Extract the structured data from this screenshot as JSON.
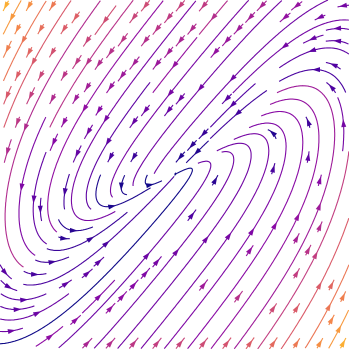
{
  "chart_data": {
    "type": "streamplot",
    "colormap": [
      "#0d0887",
      "#5302a3",
      "#8b0aa5",
      "#b83289",
      "#db5c68",
      "#f48849",
      "#febd2a"
    ]
  }
}
